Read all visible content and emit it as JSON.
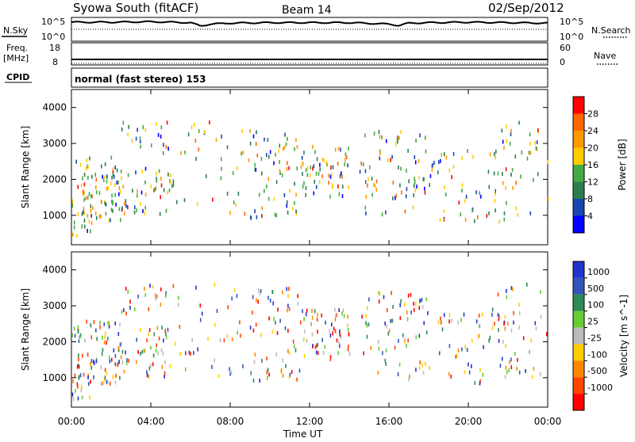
{
  "header": {
    "station": "Syowa South (fitACF)",
    "beam": "Beam 14",
    "date": "02/Sep/2012"
  },
  "noise_panel": {
    "left_label": "N.Sky",
    "right_label": "N.Search",
    "tick_top": "10^5",
    "tick_bottom": "10^0"
  },
  "freq_panel": {
    "left_label_line1": "Freq.",
    "left_label_line2": "[MHz]",
    "left_tick_top": "18",
    "left_tick_bottom": "8",
    "right_label": "Nave",
    "right_tick_top": "60",
    "right_tick_bottom": "0"
  },
  "cpid": {
    "label": "CPID",
    "value": "normal (fast stereo) 153"
  },
  "colors": {
    "power_scale": [
      "#0000ff",
      "#1a44b0",
      "#2e7d4f",
      "#44aa44",
      "#ffcc00",
      "#ff9900",
      "#ff6600",
      "#ff0000"
    ],
    "velocity_scale": [
      "#2233cc",
      "#3355bb",
      "#2e8b57",
      "#66cc33",
      "#bbbbbb",
      "#ffcc00",
      "#ff8800",
      "#ff4400",
      "#ff0000"
    ]
  },
  "chart_data": [
    {
      "type": "line",
      "title": "",
      "series": [
        {
          "name": "N.Sky",
          "x": [
            "00:00",
            "02:00",
            "04:00",
            "06:00",
            "06:30",
            "07:00",
            "08:00",
            "10:00",
            "12:00",
            "14:00",
            "16:00",
            "16:30",
            "17:00",
            "18:00",
            "20:00",
            "22:00",
            "24:00"
          ],
          "y_log10": [
            4.0,
            4.0,
            4.1,
            3.9,
            3.2,
            3.6,
            3.8,
            3.9,
            3.9,
            3.9,
            3.6,
            3.3,
            3.8,
            3.9,
            4.0,
            3.9,
            3.8
          ]
        }
      ],
      "ylim": [
        "10^0",
        "10^5"
      ]
    },
    {
      "type": "line",
      "series": [
        {
          "name": "Freq. [MHz]",
          "values": [
            10.5
          ],
          "note": "constant"
        },
        {
          "name": "Nave",
          "values": [
            0
          ]
        }
      ],
      "ylim_left": [
        8,
        18
      ],
      "ylim_right": [
        0,
        60
      ]
    },
    {
      "type": "scatter",
      "title": "",
      "xlabel": "",
      "ylabel": "Slant Range [km]",
      "xlim": [
        "00:00",
        "24:00"
      ],
      "ylim": [
        180,
        4500
      ],
      "yticks": [
        1000,
        2000,
        3000,
        4000
      ],
      "colorbar": {
        "label": "Power [dB]",
        "ticks": [
          4,
          8,
          12,
          16,
          20,
          24,
          28
        ],
        "range": [
          0,
          32
        ]
      },
      "clusters": [
        {
          "t0": 0.0,
          "t1": 2.5,
          "r0": 800,
          "r1": 2600,
          "n": 90
        },
        {
          "t0": 0.0,
          "t1": 1.0,
          "r0": 300,
          "r1": 900,
          "n": 10
        },
        {
          "t0": 2.5,
          "t1": 5.0,
          "r0": 1000,
          "r1": 2400,
          "n": 45
        },
        {
          "t0": 2.5,
          "t1": 5.0,
          "r0": 2700,
          "r1": 3600,
          "n": 22
        },
        {
          "t0": 5.0,
          "t1": 9.0,
          "r0": 1000,
          "r1": 3600,
          "n": 40
        },
        {
          "t0": 9.0,
          "t1": 11.5,
          "r0": 900,
          "r1": 3500,
          "n": 60
        },
        {
          "t0": 11.5,
          "t1": 14.0,
          "r0": 1500,
          "r1": 2900,
          "n": 60
        },
        {
          "t0": 14.5,
          "t1": 18.0,
          "r0": 900,
          "r1": 3400,
          "n": 70
        },
        {
          "t0": 18.0,
          "t1": 22.0,
          "r0": 800,
          "r1": 2800,
          "n": 55
        },
        {
          "t0": 21.0,
          "t1": 24.0,
          "r0": 1000,
          "r1": 3600,
          "n": 40
        }
      ]
    },
    {
      "type": "scatter",
      "title": "",
      "xlabel": "Time UT",
      "ylabel": "Slant Range [km]",
      "xlim": [
        "00:00",
        "24:00"
      ],
      "xticks": [
        "00:00",
        "04:00",
        "08:00",
        "12:00",
        "16:00",
        "20:00",
        "00:00"
      ],
      "ylim": [
        180,
        4500
      ],
      "yticks": [
        1000,
        2000,
        3000,
        4000
      ],
      "colorbar": {
        "label": "Velocity [m s^-1]",
        "ticks": [
          "1000",
          "500",
          "100",
          "25",
          "-25",
          "-100",
          "-500",
          "-1000"
        ]
      },
      "clusters": [
        {
          "t0": 0.0,
          "t1": 2.5,
          "r0": 800,
          "r1": 2600,
          "n": 90
        },
        {
          "t0": 0.0,
          "t1": 1.0,
          "r0": 300,
          "r1": 900,
          "n": 10
        },
        {
          "t0": 2.5,
          "t1": 5.0,
          "r0": 1000,
          "r1": 2400,
          "n": 45
        },
        {
          "t0": 2.5,
          "t1": 5.0,
          "r0": 2700,
          "r1": 3600,
          "n": 22
        },
        {
          "t0": 5.0,
          "t1": 9.0,
          "r0": 1000,
          "r1": 3600,
          "n": 40
        },
        {
          "t0": 9.0,
          "t1": 11.5,
          "r0": 900,
          "r1": 3500,
          "n": 60
        },
        {
          "t0": 11.5,
          "t1": 14.0,
          "r0": 1500,
          "r1": 2900,
          "n": 60
        },
        {
          "t0": 14.5,
          "t1": 18.0,
          "r0": 900,
          "r1": 3400,
          "n": 70
        },
        {
          "t0": 18.0,
          "t1": 22.0,
          "r0": 800,
          "r1": 2800,
          "n": 55
        },
        {
          "t0": 21.0,
          "t1": 24.0,
          "r0": 1000,
          "r1": 3600,
          "n": 40
        }
      ]
    }
  ]
}
